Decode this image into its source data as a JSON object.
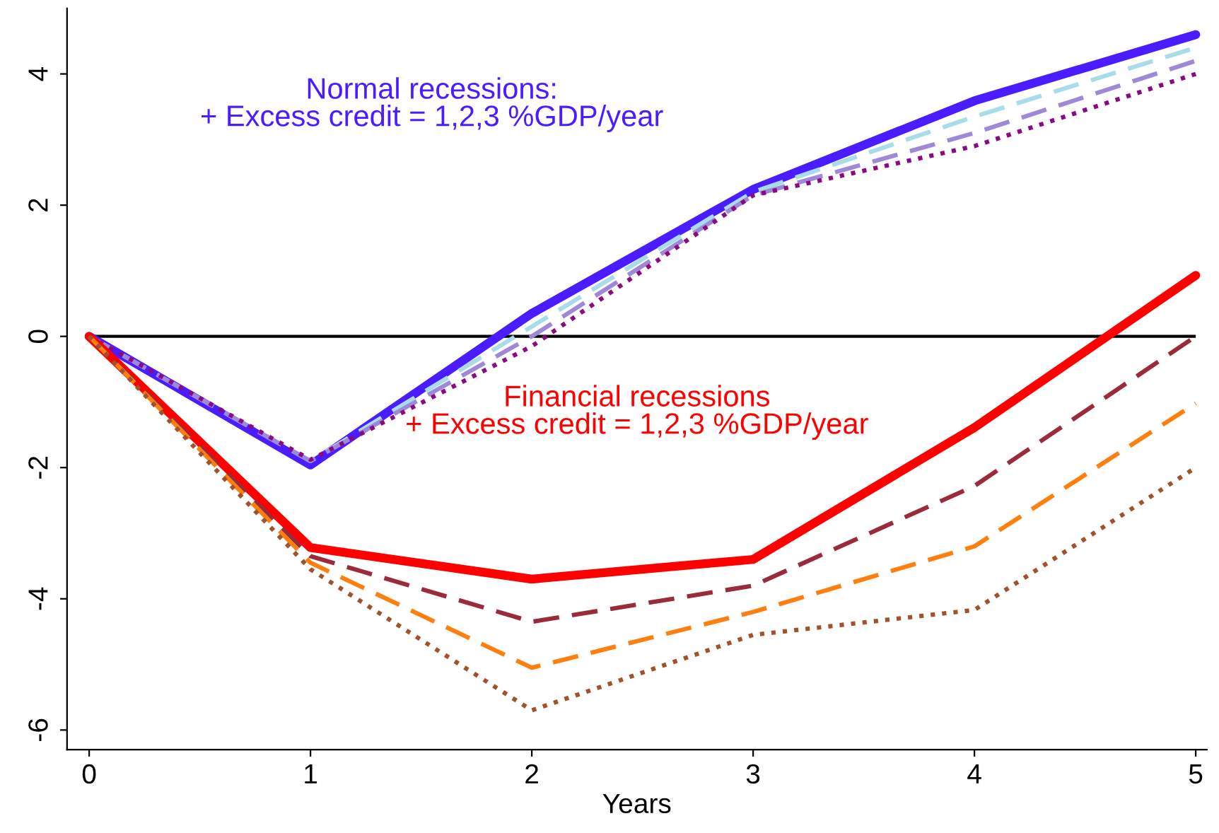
{
  "chart_data": {
    "type": "line",
    "xlabel": "Years",
    "x": [
      0,
      1,
      2,
      3,
      4,
      5
    ],
    "xlim": [
      -0.1,
      5.05
    ],
    "xticks": [
      0,
      1,
      2,
      3,
      4,
      5
    ],
    "ylim": [
      -6.3,
      5.0
    ],
    "yticks": [
      -6,
      -4,
      -2,
      0,
      2,
      4
    ],
    "grid": false,
    "legend": false,
    "marker": "none",
    "ref_lines": [
      {
        "axis": "y",
        "value": 0,
        "color": "#000000"
      }
    ],
    "annotations": [
      "Normal recessions:\n+ Excess credit = 1,2,3 %GDP/year",
      "Financial recessions\n+ Excess credit = 1,2,3 %GDP/year"
    ],
    "series": [
      {
        "color": "#4b1cff",
        "line_style": "solid",
        "values": [
          0,
          -1.96,
          0.35,
          2.24,
          3.59,
          4.6
        ]
      },
      {
        "color": "#a8dce8",
        "line_style": "dashed",
        "values": [
          0,
          -1.9,
          0.15,
          2.2,
          3.35,
          4.4
        ]
      },
      {
        "color": "#9f88d8",
        "line_style": "dashed",
        "values": [
          0,
          -1.9,
          0.0,
          2.15,
          3.1,
          4.2
        ]
      },
      {
        "color": "#8b0a7f",
        "line_style": "dotted",
        "values": [
          0,
          -1.88,
          -0.15,
          2.15,
          2.9,
          4.0
        ]
      },
      {
        "color": "#ff0000",
        "line_style": "solid",
        "values": [
          0,
          -3.22,
          -3.7,
          -3.4,
          -1.39,
          0.93
        ]
      },
      {
        "color": "#9b2a3a",
        "line_style": "dashed",
        "values": [
          0,
          -3.35,
          -4.35,
          -3.8,
          -2.28,
          0
        ]
      },
      {
        "color": "#ff7f0e",
        "line_style": "dashed",
        "values": [
          0,
          -3.45,
          -5.05,
          -4.2,
          -3.2,
          -1.02
        ]
      },
      {
        "color": "#a0522d",
        "line_style": "dotted",
        "values": [
          0,
          -3.55,
          -5.7,
          -4.55,
          -4.17,
          -2.0
        ]
      }
    ]
  }
}
